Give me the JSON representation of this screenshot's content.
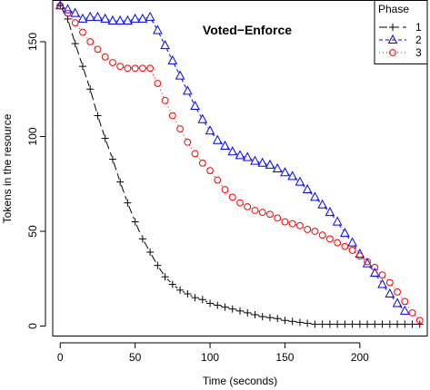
{
  "chart_data": {
    "type": "line",
    "title": "Voted−Enforce",
    "xlabel": "Time (seconds)",
    "ylabel": "Tokens in the resource",
    "xlim": [
      -5,
      245
    ],
    "ylim": [
      -5,
      172
    ],
    "x_ticks": [
      0,
      50,
      100,
      150,
      200
    ],
    "y_ticks": [
      0,
      50,
      100,
      150
    ],
    "x_tick_labels": [
      "0",
      "50",
      "100",
      "150",
      "200"
    ],
    "y_tick_labels": [
      "0",
      "50",
      "100",
      "150"
    ],
    "grid": false,
    "legend": {
      "title": "Phase",
      "position": "top-right"
    },
    "series": [
      {
        "name": "1",
        "color": "#000000",
        "marker": "plus",
        "line": "longdash",
        "points": [
          [
            0,
            169
          ],
          [
            5,
            162
          ],
          [
            10,
            149
          ],
          [
            15,
            137
          ],
          [
            20,
            125
          ],
          [
            25,
            111
          ],
          [
            30,
            99
          ],
          [
            35,
            88
          ],
          [
            40,
            76
          ],
          [
            45,
            65
          ],
          [
            50,
            55
          ],
          [
            55,
            46
          ],
          [
            60,
            39
          ],
          [
            65,
            32
          ],
          [
            70,
            26
          ],
          [
            75,
            22
          ],
          [
            80,
            19
          ],
          [
            85,
            17
          ],
          [
            90,
            15
          ],
          [
            95,
            14
          ],
          [
            100,
            12
          ],
          [
            105,
            11
          ],
          [
            110,
            10
          ],
          [
            115,
            9
          ],
          [
            120,
            8
          ],
          [
            125,
            7
          ],
          [
            130,
            6
          ],
          [
            135,
            5
          ],
          [
            140,
            4.5
          ],
          [
            145,
            4
          ],
          [
            150,
            3
          ],
          [
            155,
            2.5
          ],
          [
            160,
            2
          ],
          [
            165,
            1.5
          ],
          [
            170,
            1
          ],
          [
            175,
            1
          ],
          [
            180,
            1
          ],
          [
            185,
            1
          ],
          [
            190,
            1
          ],
          [
            195,
            1
          ],
          [
            200,
            1
          ],
          [
            205,
            1
          ],
          [
            210,
            1
          ],
          [
            215,
            1
          ],
          [
            220,
            1
          ],
          [
            225,
            1
          ],
          [
            230,
            1
          ],
          [
            235,
            1
          ],
          [
            240,
            1
          ]
        ]
      },
      {
        "name": "2",
        "color": "#0000ff",
        "marker": "triangle",
        "line": "dashed",
        "points": [
          [
            0,
            169
          ],
          [
            5,
            167
          ],
          [
            10,
            165
          ],
          [
            15,
            162
          ],
          [
            20,
            163
          ],
          [
            25,
            163
          ],
          [
            30,
            162
          ],
          [
            35,
            161
          ],
          [
            40,
            161
          ],
          [
            45,
            161
          ],
          [
            50,
            162
          ],
          [
            55,
            162
          ],
          [
            60,
            163
          ],
          [
            65,
            156
          ],
          [
            70,
            148
          ],
          [
            75,
            140
          ],
          [
            80,
            132
          ],
          [
            85,
            124
          ],
          [
            90,
            116
          ],
          [
            95,
            109
          ],
          [
            100,
            103
          ],
          [
            105,
            98
          ],
          [
            110,
            95
          ],
          [
            115,
            92
          ],
          [
            120,
            90
          ],
          [
            125,
            89
          ],
          [
            130,
            87
          ],
          [
            135,
            86
          ],
          [
            140,
            85
          ],
          [
            145,
            83
          ],
          [
            150,
            81
          ],
          [
            155,
            79
          ],
          [
            160,
            76
          ],
          [
            165,
            72
          ],
          [
            170,
            68
          ],
          [
            175,
            64
          ],
          [
            180,
            60
          ],
          [
            185,
            55
          ],
          [
            190,
            49
          ],
          [
            195,
            44
          ],
          [
            200,
            38
          ],
          [
            205,
            33
          ],
          [
            210,
            28
          ],
          [
            215,
            22
          ],
          [
            220,
            17
          ],
          [
            225,
            12
          ],
          [
            230,
            8
          ]
        ]
      },
      {
        "name": "3",
        "color": "#ff0000",
        "marker": "circle",
        "line": "dotted",
        "points": [
          [
            0,
            169
          ],
          [
            5,
            165
          ],
          [
            10,
            160
          ],
          [
            15,
            155
          ],
          [
            20,
            150
          ],
          [
            25,
            146
          ],
          [
            30,
            142
          ],
          [
            35,
            139
          ],
          [
            40,
            137
          ],
          [
            45,
            136
          ],
          [
            50,
            136
          ],
          [
            55,
            136
          ],
          [
            60,
            136
          ],
          [
            65,
            128
          ],
          [
            70,
            119
          ],
          [
            75,
            111
          ],
          [
            80,
            104
          ],
          [
            85,
            97
          ],
          [
            90,
            91
          ],
          [
            95,
            86
          ],
          [
            100,
            82
          ],
          [
            105,
            77
          ],
          [
            110,
            72
          ],
          [
            115,
            68
          ],
          [
            120,
            65
          ],
          [
            125,
            63
          ],
          [
            130,
            61
          ],
          [
            135,
            60
          ],
          [
            140,
            59
          ],
          [
            145,
            57
          ],
          [
            150,
            55
          ],
          [
            155,
            54
          ],
          [
            160,
            53
          ],
          [
            165,
            51
          ],
          [
            170,
            50
          ],
          [
            175,
            48
          ],
          [
            180,
            46
          ],
          [
            185,
            44
          ],
          [
            190,
            42
          ],
          [
            195,
            40
          ],
          [
            200,
            37
          ],
          [
            205,
            34
          ],
          [
            210,
            31
          ],
          [
            215,
            27
          ],
          [
            220,
            23
          ],
          [
            225,
            18
          ],
          [
            230,
            13
          ],
          [
            235,
            7
          ],
          [
            240,
            3
          ]
        ]
      }
    ]
  }
}
